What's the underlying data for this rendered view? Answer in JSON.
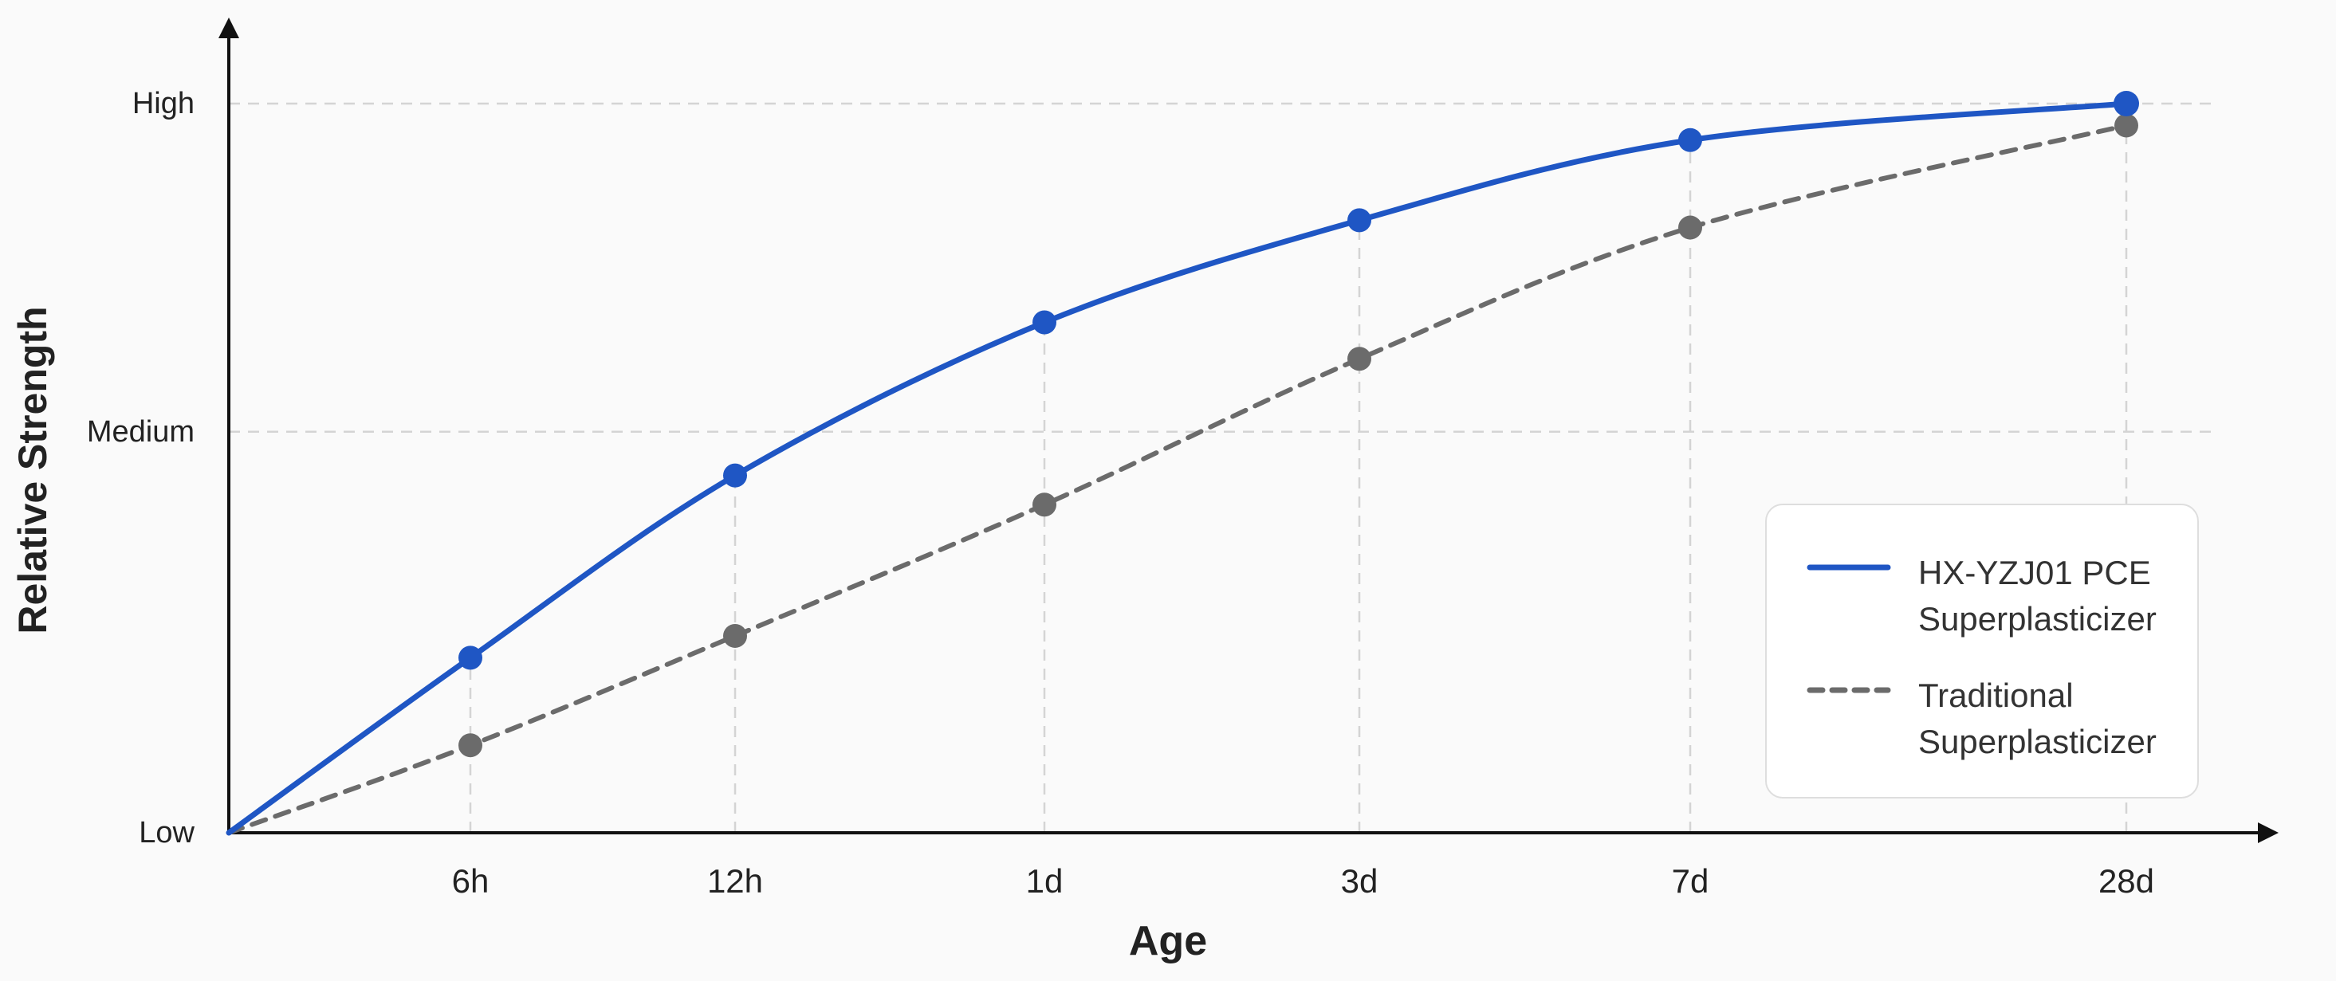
{
  "chart_data": {
    "type": "line",
    "xlabel": "Age",
    "ylabel": "Relative Strength",
    "categories": [
      "6h",
      "12h",
      "1d",
      "3d",
      "7d",
      "28d"
    ],
    "y_tick_labels": [
      "Low",
      "Medium",
      "High"
    ],
    "ylim": [
      0,
      1
    ],
    "y_tick_values": [
      0,
      0.55,
      1
    ],
    "grid": true,
    "legend_position": "bottom-right",
    "series": [
      {
        "name": "HX-YZJ01 PCE Superplasticizer",
        "values": [
          0.24,
          0.49,
          0.7,
          0.84,
          0.95,
          1.0
        ],
        "color": "#1f56c4",
        "style": "solid"
      },
      {
        "name": "Traditional Superplasticizer",
        "values": [
          0.12,
          0.27,
          0.45,
          0.65,
          0.83,
          0.97
        ],
        "color": "#6b6b6b",
        "style": "dashed"
      }
    ]
  }
}
